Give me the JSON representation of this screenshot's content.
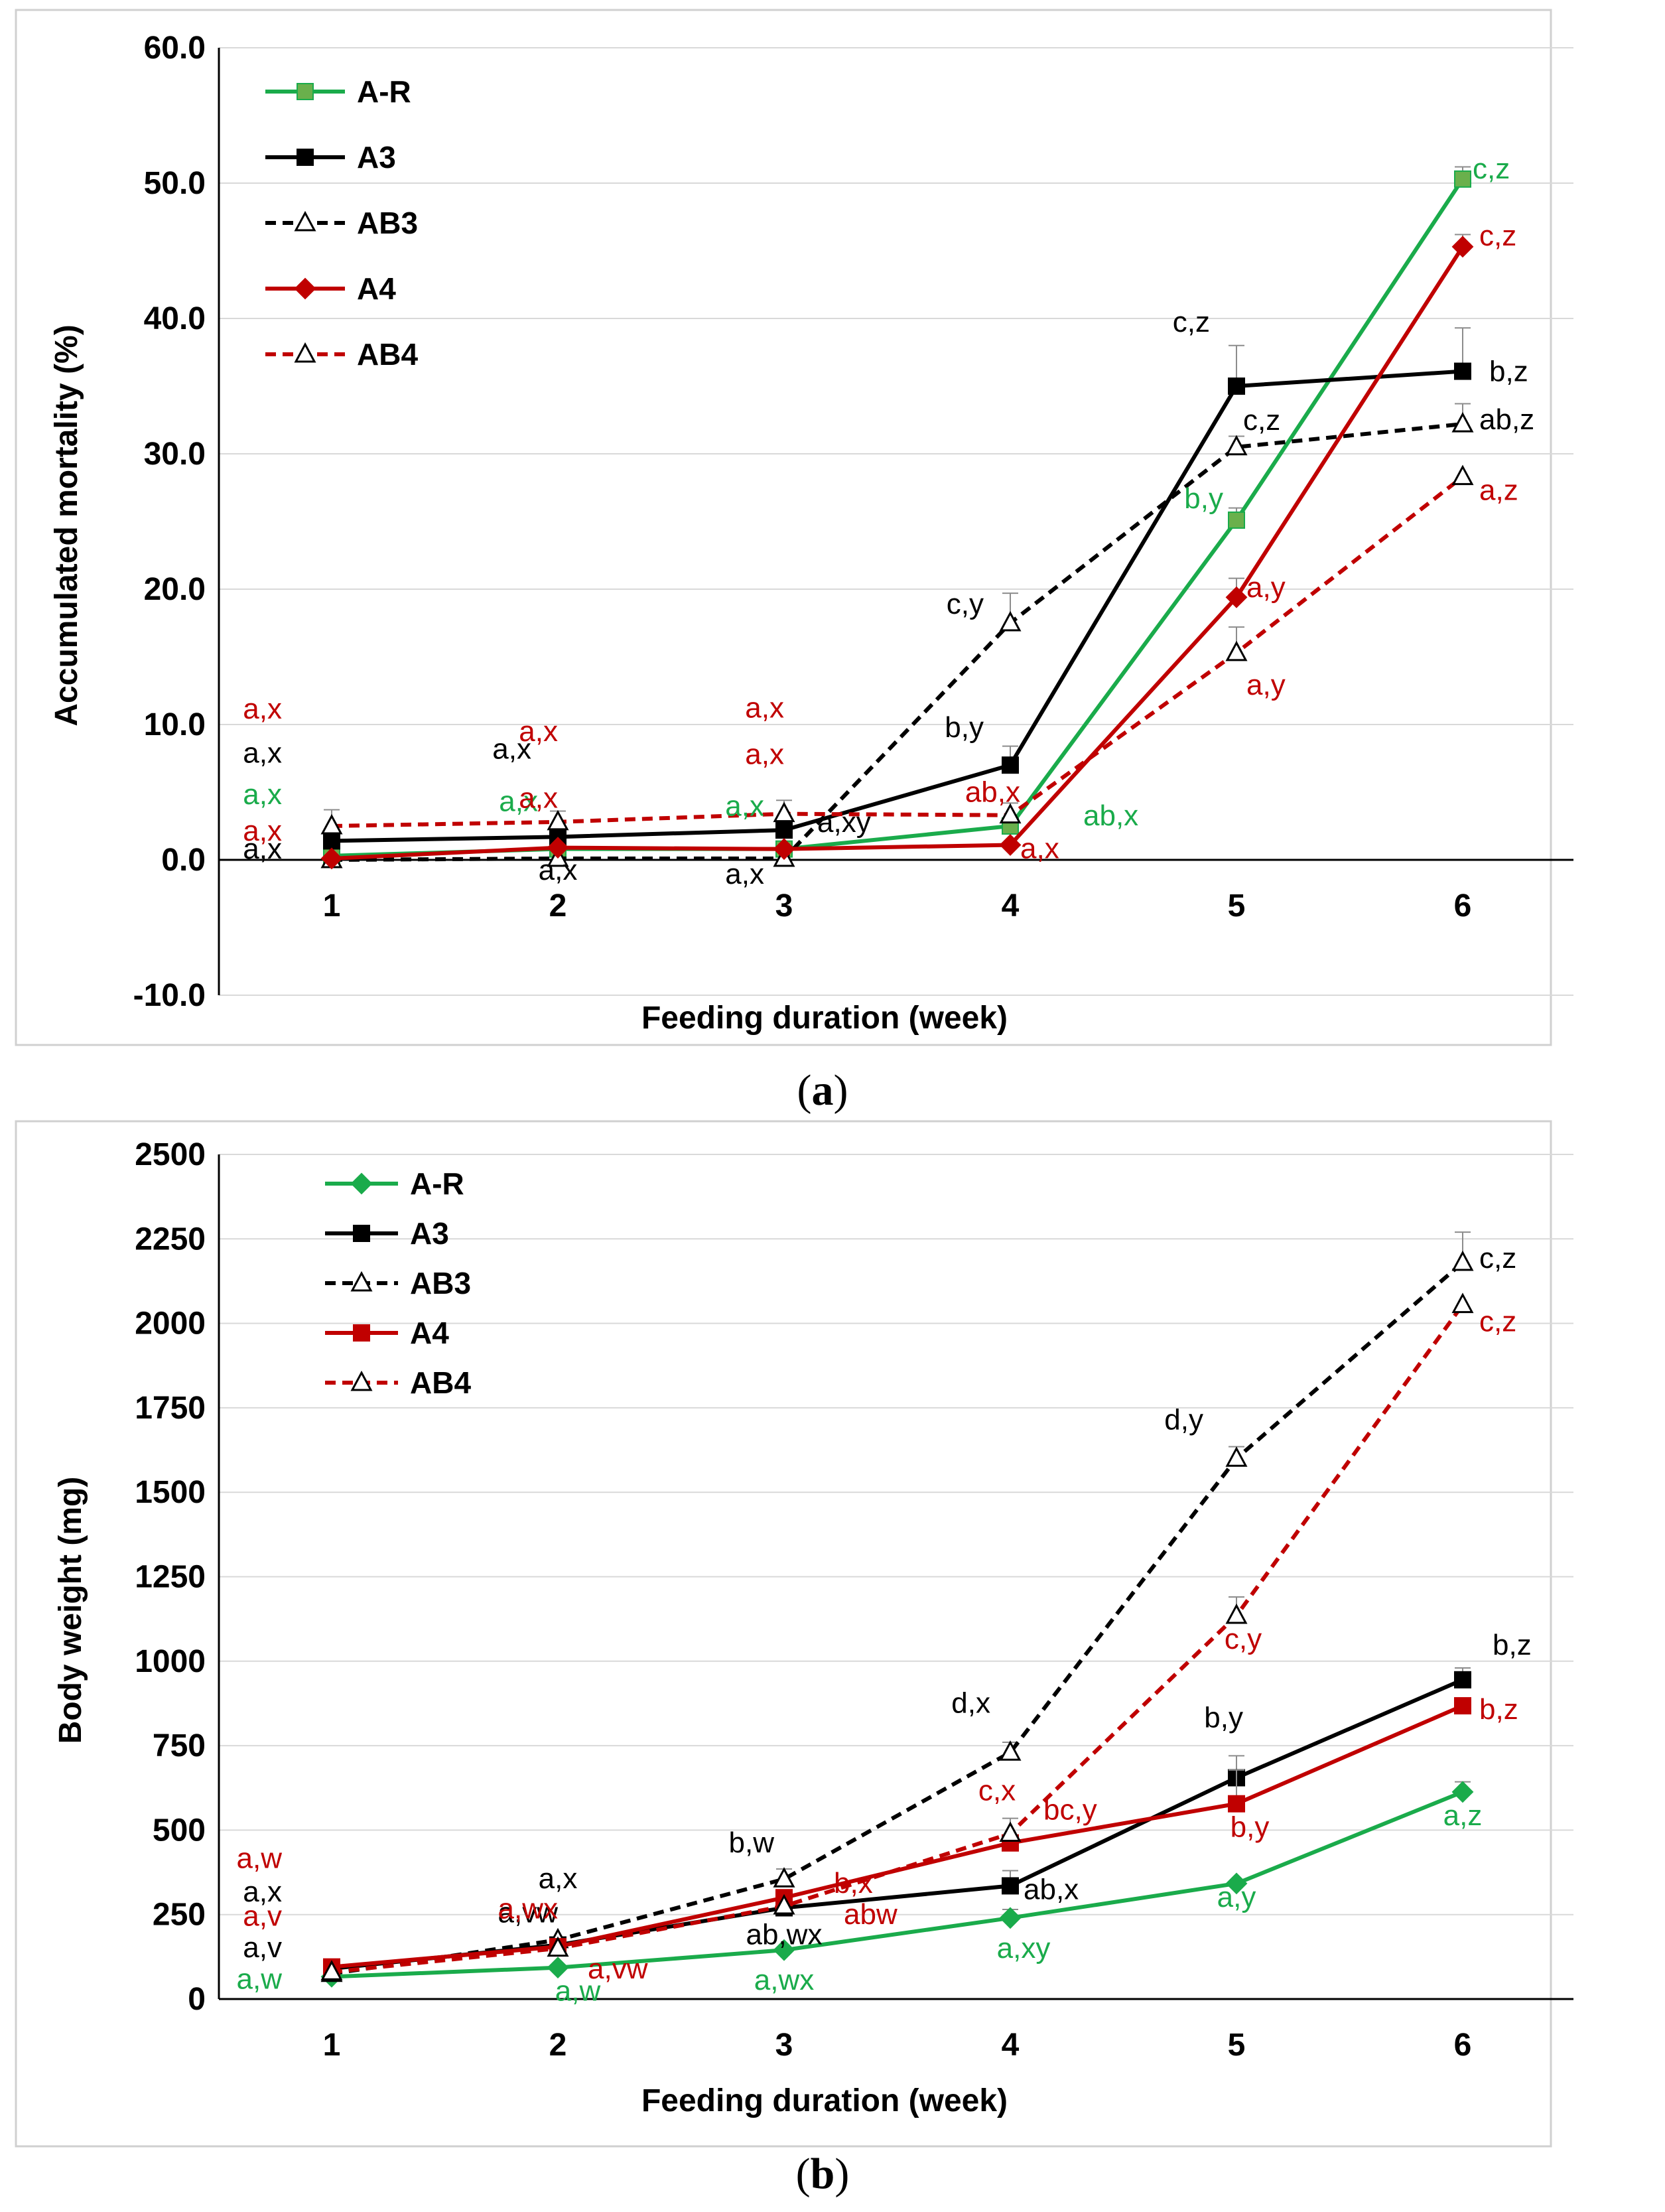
{
  "chart_data": [
    {
      "id": "a",
      "type": "line",
      "caption_label": "a",
      "caption_text": "(a)",
      "xlabel": "Feeding duration (week)",
      "ylabel": "Accumulated mortality (%)",
      "x": [
        1,
        2,
        3,
        4,
        5,
        6
      ],
      "x_tick_labels": [
        "1",
        "2",
        "3",
        "4",
        "5",
        "6"
      ],
      "ylim": [
        -10,
        60
      ],
      "y_ticks": [
        -10,
        0,
        10,
        20,
        30,
        40,
        50,
        60
      ],
      "y_tick_labels": [
        "-10.0",
        "0.0",
        "10.0",
        "20.0",
        "30.0",
        "40.0",
        "50.0",
        "60.0"
      ],
      "grid": true,
      "legend_position": "top-left",
      "series": [
        {
          "name": "A-R",
          "color": "#1aab4b",
          "marker": "square",
          "marker_color": "#6ab04c",
          "dash": false,
          "values": [
            0.3,
            0.8,
            0.8,
            2.5,
            25.1,
            50.3
          ],
          "errors": [
            0,
            0,
            0,
            0.4,
            0.9,
            0.9
          ],
          "labels": [
            "a,x",
            "a,x",
            "a,x",
            "ab,x",
            "b,y",
            "c,z"
          ]
        },
        {
          "name": "A3",
          "color": "#000000",
          "marker": "square",
          "marker_color": "#000000",
          "dash": false,
          "values": [
            1.4,
            1.7,
            2.2,
            7.0,
            35.0,
            36.1
          ],
          "errors": [
            0,
            0,
            0,
            1.4,
            3.0,
            3.2
          ],
          "labels": [
            "a,x",
            "a,x",
            "a,xy",
            "b,y",
            "c,z",
            "b,z"
          ]
        },
        {
          "name": "AB3",
          "color": "#000000",
          "marker": "triangle",
          "marker_color": "#ffffff",
          "dash": true,
          "values": [
            0.0,
            0.1,
            0.1,
            17.5,
            30.5,
            32.2
          ],
          "errors": [
            0,
            0,
            0,
            2.2,
            0.8,
            1.5
          ],
          "labels": [
            "a,x",
            "a,x",
            "a,x",
            "c,y",
            "c,z",
            "ab,z"
          ]
        },
        {
          "name": "A4",
          "color": "#c00000",
          "marker": "diamond",
          "marker_color": "#c00000",
          "dash": false,
          "values": [
            0.1,
            0.9,
            0.8,
            1.1,
            19.4,
            45.3
          ],
          "errors": [
            0,
            0,
            0,
            0,
            1.4,
            0.9
          ],
          "labels": [
            "a,x",
            "a,x",
            "a,x",
            "a,x",
            "a,y",
            "c,z"
          ]
        },
        {
          "name": "AB4",
          "color": "#c00000",
          "marker": "triangle",
          "marker_color": "#ffffff",
          "dash": true,
          "values": [
            2.5,
            2.8,
            3.4,
            3.3,
            15.3,
            28.3
          ],
          "errors": [
            1.2,
            0.8,
            1.0,
            0.9,
            1.9,
            0
          ],
          "labels": [
            "a,x",
            "a,x",
            "a,x",
            "ab,x",
            "a,y",
            "a,z"
          ]
        }
      ]
    },
    {
      "id": "b",
      "type": "line",
      "caption_label": "b",
      "caption_text": "(b)",
      "xlabel": "Feeding duration (week)",
      "ylabel": "Body weight (mg)",
      "x": [
        1,
        2,
        3,
        4,
        5,
        6
      ],
      "x_tick_labels": [
        "1",
        "2",
        "3",
        "4",
        "5",
        "6"
      ],
      "ylim": [
        0,
        2500
      ],
      "y_ticks": [
        0,
        250,
        500,
        750,
        1000,
        1250,
        1500,
        1750,
        2000,
        2250,
        2500
      ],
      "y_tick_labels": [
        "0",
        "250",
        "500",
        "750",
        "1000",
        "1250",
        "1500",
        "1750",
        "2000",
        "2250",
        "2500"
      ],
      "grid": true,
      "legend_position": "top-left",
      "series": [
        {
          "name": "A-R",
          "color": "#1aab4b",
          "marker": "diamond",
          "marker_color": "#1aab4b",
          "dash": false,
          "values": [
            66,
            93,
            145,
            240,
            342,
            613
          ],
          "errors": [
            0,
            0,
            0,
            25,
            0,
            30
          ],
          "labels": [
            "a,w",
            "a,w",
            "a,wx",
            "a,xy",
            "a,y",
            "a,z"
          ]
        },
        {
          "name": "A3",
          "color": "#000000",
          "marker": "square",
          "marker_color": "#000000",
          "dash": false,
          "values": [
            90,
            160,
            270,
            335,
            655,
            945
          ],
          "errors": [
            0,
            0,
            0,
            45,
            65,
            35
          ],
          "labels": [
            "a,v",
            "a,vw",
            "ab,wx",
            "ab,x",
            "b,y",
            "b,z"
          ]
        },
        {
          "name": "AB3",
          "color": "#000000",
          "marker": "triangle",
          "marker_color": "#ffffff",
          "dash": true,
          "values": [
            75,
            175,
            355,
            730,
            1600,
            2180
          ],
          "errors": [
            0,
            0,
            30,
            30,
            35,
            90
          ],
          "labels": [
            "a,x",
            "a,x",
            "b,w",
            "d,x",
            "d,y",
            "c,z"
          ]
        },
        {
          "name": "A4",
          "color": "#c00000",
          "marker": "square",
          "marker_color": "#c00000",
          "dash": false,
          "values": [
            95,
            155,
            300,
            462,
            578,
            868
          ],
          "errors": [
            0,
            0,
            0,
            0,
            100,
            0
          ],
          "labels": [
            "a,v",
            "a,vw",
            "abw",
            "bc,y",
            "b,y",
            "b,z"
          ]
        },
        {
          "name": "AB4",
          "color": "#c00000",
          "marker": "triangle",
          "marker_color": "#ffffff",
          "dash": true,
          "values": [
            80,
            150,
            275,
            490,
            1135,
            2055
          ],
          "errors": [
            0,
            0,
            0,
            45,
            55,
            0
          ],
          "labels": [
            "a,w",
            "a,wx",
            "b,x",
            "c,x",
            "c,y",
            "c,z"
          ]
        }
      ]
    }
  ]
}
